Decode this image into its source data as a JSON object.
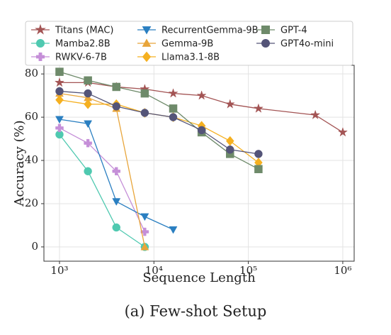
{
  "chart_data": {
    "type": "line",
    "xlabel": "Sequence Length",
    "ylabel": "Accuracy (%)",
    "caption": "(a) Few-shot Setup",
    "xscale": "log",
    "grid": true,
    "xlim": [
      684,
      1320000
    ],
    "ylim": [
      -6.6,
      84
    ],
    "xticks": [
      {
        "value": 1000,
        "label": "10³"
      },
      {
        "value": 10000,
        "label": "10⁴"
      },
      {
        "value": 100000,
        "label": "10⁵"
      },
      {
        "value": 1000000,
        "label": "10⁶"
      }
    ],
    "yticks": [
      0,
      20,
      40,
      60,
      80
    ],
    "series": [
      {
        "name": "Titans (MAC)",
        "color": "#a35454",
        "marker": "star",
        "x": [
          1000,
          2000,
          4000,
          8000,
          16000,
          32000,
          64000,
          128000,
          512000,
          1000000
        ],
        "values": [
          76,
          76,
          74,
          73,
          71,
          70,
          66,
          64,
          61,
          53
        ]
      },
      {
        "name": "Mamba2.8B",
        "color": "#4fc9b0",
        "marker": "circle",
        "x": [
          1000,
          2000,
          4000,
          8000
        ],
        "values": [
          52,
          35,
          9,
          0
        ]
      },
      {
        "name": "RWKV-6-7B",
        "color": "#c58fd8",
        "marker": "plus",
        "x": [
          1000,
          2000,
          4000,
          8000
        ],
        "values": [
          55,
          48,
          35,
          7
        ]
      },
      {
        "name": "RecurrentGemma-9B",
        "color": "#2a7fc1",
        "marker": "tri-down",
        "x": [
          1000,
          2000,
          4000,
          8000,
          16000
        ],
        "values": [
          59,
          57,
          21,
          14,
          8
        ]
      },
      {
        "name": "Gemma-9B",
        "color": "#e8a53a",
        "marker": "tri-up",
        "x": [
          1000,
          2000,
          4000,
          8000
        ],
        "values": [
          71,
          69,
          64,
          0
        ]
      },
      {
        "name": "Llama3.1-8B",
        "color": "#f5b020",
        "marker": "diamond",
        "x": [
          1000,
          2000,
          4000,
          8000,
          16000,
          32000,
          64000,
          128000
        ],
        "values": [
          68,
          66,
          66,
          62,
          60,
          56,
          49,
          39
        ]
      },
      {
        "name": "GPT-4",
        "color": "#6e8a6a",
        "marker": "square",
        "x": [
          1000,
          2000,
          4000,
          8000,
          16000,
          32000,
          64000,
          128000
        ],
        "values": [
          81,
          77,
          74,
          71,
          64,
          53,
          43,
          36
        ]
      },
      {
        "name": "GPT4o-mini",
        "color": "#545478",
        "marker": "circle",
        "x": [
          1000,
          2000,
          4000,
          8000,
          16000,
          32000,
          64000,
          128000
        ],
        "values": [
          72,
          71,
          65,
          62,
          60,
          54,
          45,
          43
        ]
      }
    ]
  }
}
